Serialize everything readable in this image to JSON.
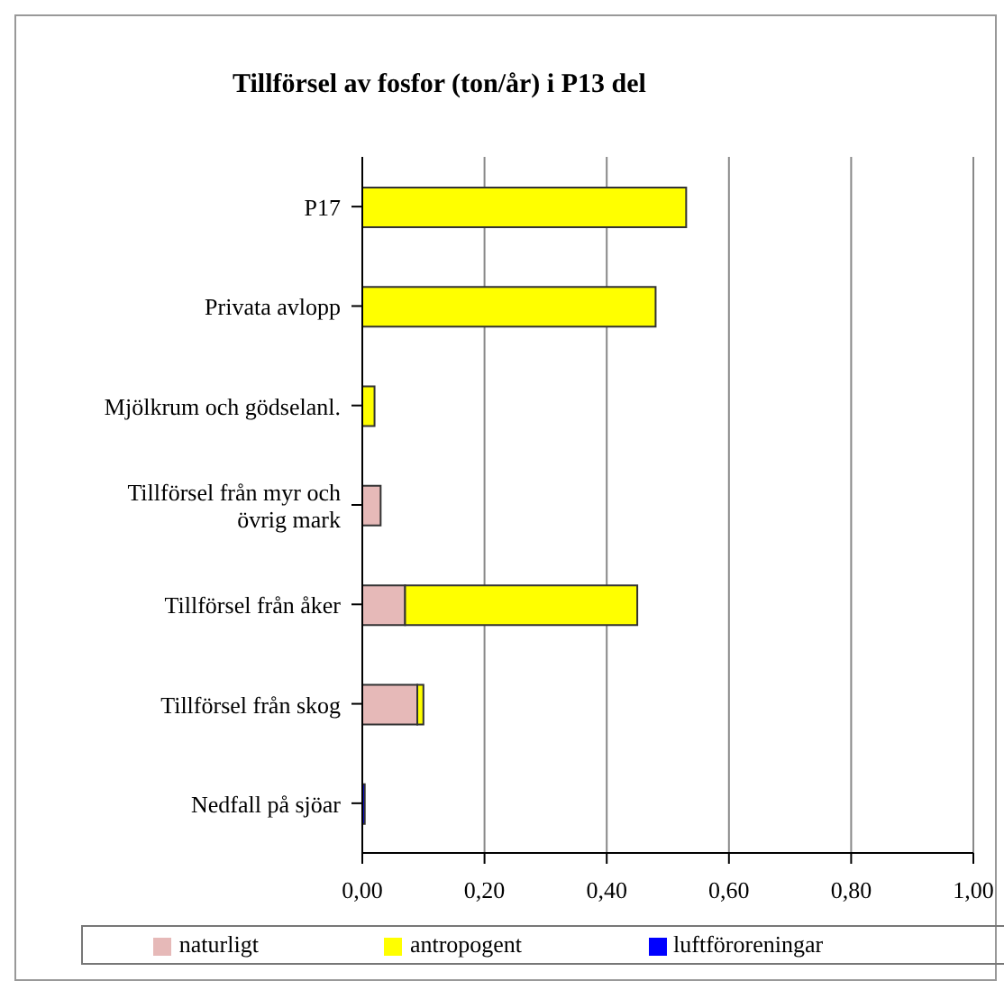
{
  "chart_data": {
    "type": "bar",
    "orientation": "horizontal",
    "stacked": true,
    "title": "Tillförsel av fosfor (ton/år) i P13 del",
    "categories": [
      "P17",
      "Privata avlopp",
      "Mjölkrum och gödselanl.",
      "Tillförsel från myr och övrig mark",
      "Tillförsel från åker",
      "Tillförsel från skog",
      "Nedfall på sjöar"
    ],
    "series": [
      {
        "name": "naturligt",
        "color": "#e6b9b8",
        "values": [
          0,
          0,
          0,
          0.03,
          0.07,
          0.09,
          0
        ]
      },
      {
        "name": "antropogent",
        "color": "#ffff00",
        "values": [
          0.53,
          0.48,
          0.02,
          0,
          0.38,
          0.01,
          0
        ]
      },
      {
        "name": "luftföroreningar",
        "color": "#0000ff",
        "values": [
          0,
          0,
          0,
          0,
          0,
          0,
          0.004
        ]
      }
    ],
    "xlim": [
      0,
      1
    ],
    "xticks": [
      {
        "value": 0,
        "label": "0,00"
      },
      {
        "value": 0.2,
        "label": "0,20"
      },
      {
        "value": 0.4,
        "label": "0,40"
      },
      {
        "value": 0.6,
        "label": "0,60"
      },
      {
        "value": 0.8,
        "label": "0,80"
      },
      {
        "value": 1,
        "label": "1,00"
      }
    ],
    "grid": "x",
    "legend": "bottom"
  }
}
